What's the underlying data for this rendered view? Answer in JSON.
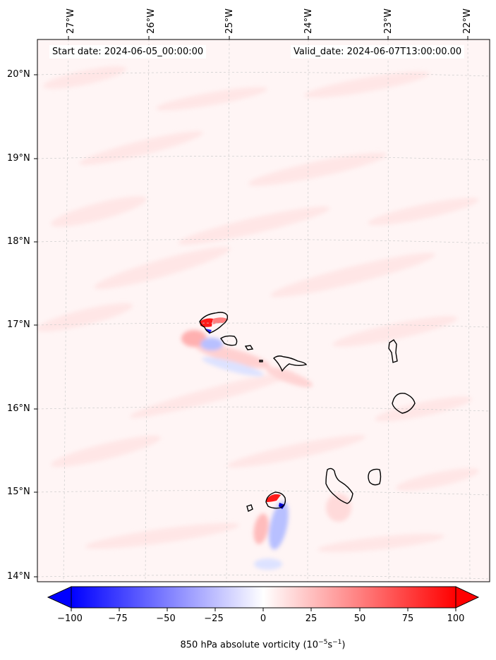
{
  "map": {
    "start_date": "Start date: 2024-06-05_00:00:00",
    "valid_date": "Valid_date: 2024-06-07T13:00:00.00",
    "lon_labels": [
      "27°W",
      "26°W",
      "25°W",
      "24°W",
      "23°W",
      "22°W"
    ],
    "lat_labels": [
      "20°N",
      "19°N",
      "18°N",
      "17°N",
      "16°N",
      "15°N",
      "14°N"
    ],
    "field_colors": {
      "background": "#fff5f5",
      "streak": "#ffe4e4",
      "positive": "#ff0000",
      "negative": "#0000ff"
    },
    "coastline_color": "#000000"
  },
  "colorbar": {
    "title_prefix": "850 hPa absolute vorticity (10",
    "title_exp1": "−5",
    "title_mid": "s",
    "title_exp2": "−1",
    "title_suffix": ")",
    "tick_labels": [
      "−100",
      "−75",
      "−50",
      "−25",
      "0",
      "25",
      "50",
      "75",
      "100"
    ],
    "range": [
      -100,
      100
    ],
    "colors": {
      "min": "#0000ff",
      "mid": "#ffffff",
      "max": "#ff0000"
    }
  }
}
